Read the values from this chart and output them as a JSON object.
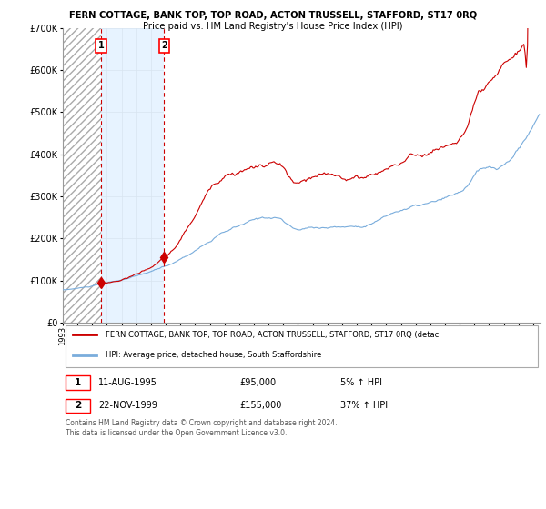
{
  "title": "FERN COTTAGE, BANK TOP, TOP ROAD, ACTON TRUSSELL, STAFFORD, ST17 0RQ",
  "subtitle": "Price paid vs. HM Land Registry's House Price Index (HPI)",
  "hpi_label": "HPI: Average price, detached house, South Staffordshire",
  "price_label": "FERN COTTAGE, BANK TOP, TOP ROAD, ACTON TRUSSELL, STAFFORD, ST17 0RQ (detac",
  "purchase1_date": "11-AUG-1995",
  "purchase1_price": 95000,
  "purchase1_pct": "5% ↑ HPI",
  "purchase1_x": 1995.614,
  "purchase2_date": "22-NOV-1999",
  "purchase2_price": 155000,
  "purchase2_pct": "37% ↑ HPI",
  "purchase2_x": 1999.894,
  "ylim": [
    0,
    700000
  ],
  "yticks": [
    0,
    100000,
    200000,
    300000,
    400000,
    500000,
    600000,
    700000
  ],
  "ytick_labels": [
    "£0",
    "£100K",
    "£200K",
    "£300K",
    "£400K",
    "£500K",
    "£600K",
    "£700K"
  ],
  "xlim_start": 1993.0,
  "xlim_end": 2025.5,
  "background_color": "#ffffff",
  "hatch_color": "#bbbbbb",
  "blue_shade_color": "#ddeeff",
  "grid_color": "#cccccc",
  "hpi_line_color": "#7aaddc",
  "price_line_color": "#cc0000",
  "dashed_line_color": "#cc0000",
  "footer_text": "Contains HM Land Registry data © Crown copyright and database right 2024.\nThis data is licensed under the Open Government Licence v3.0."
}
